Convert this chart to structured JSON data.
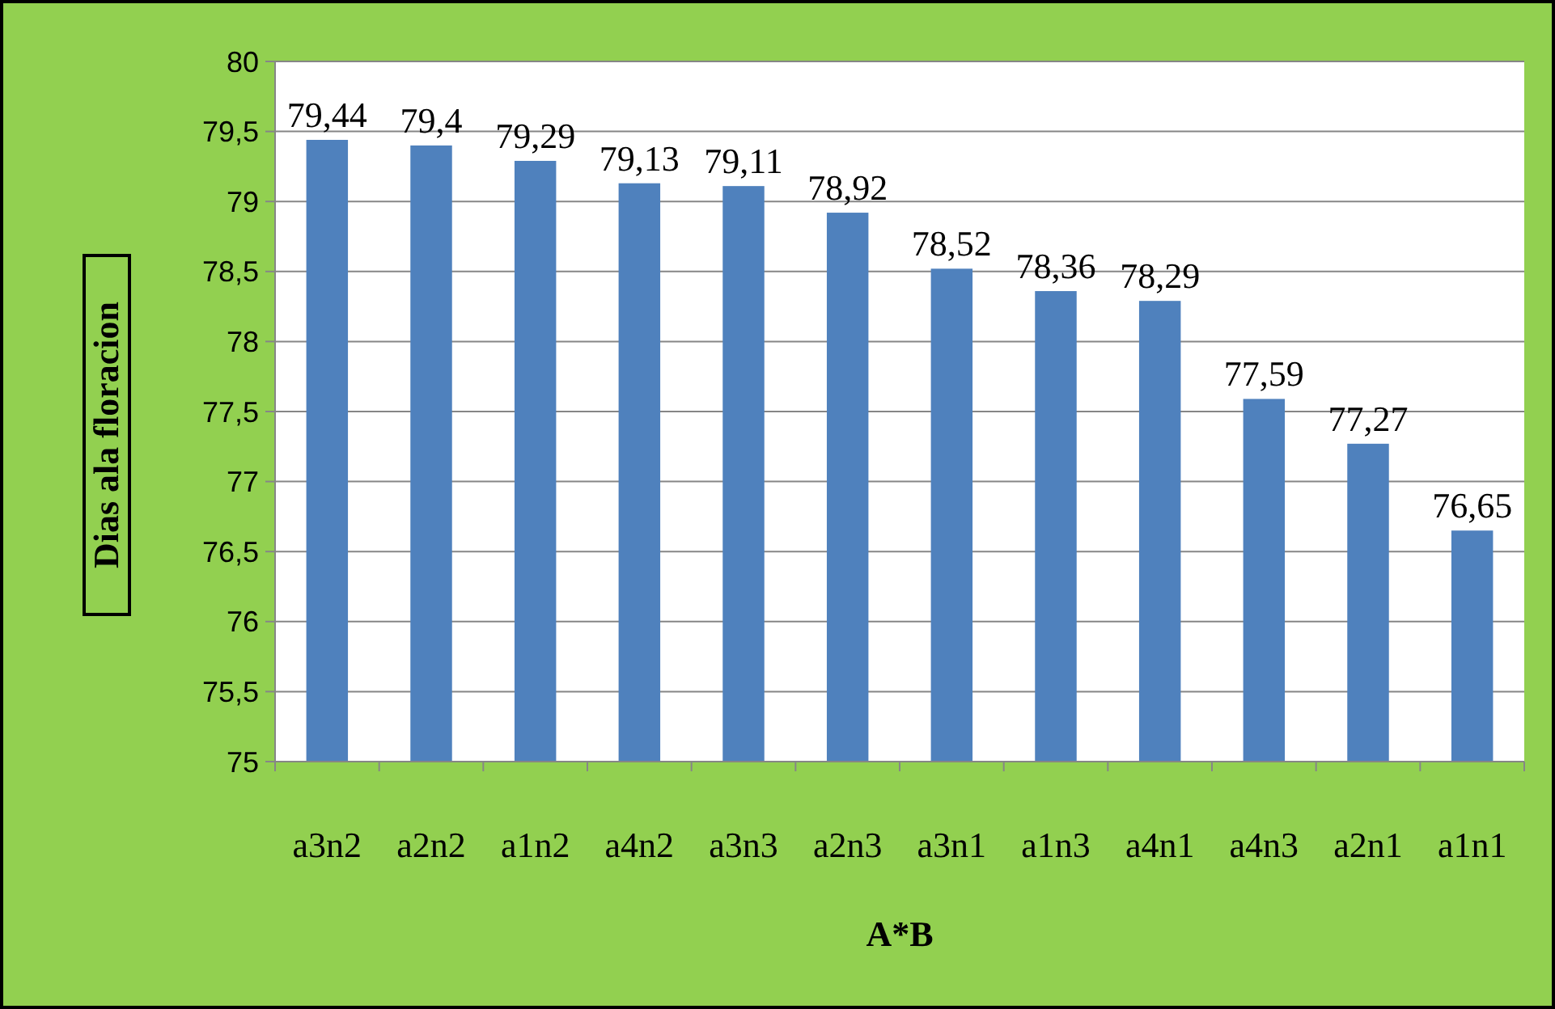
{
  "chart_data": {
    "type": "bar",
    "xlabel": "A*B",
    "ylabel": "Dias ala floracion",
    "categories": [
      "a3n2",
      "a2n2",
      "a1n2",
      "a4n2",
      "a3n3",
      "a2n3",
      "a3n1",
      "a1n3",
      "a4n1",
      "a4n3",
      "a2n1",
      "a1n1"
    ],
    "values": [
      79.44,
      79.4,
      79.29,
      79.13,
      79.11,
      78.92,
      78.52,
      78.36,
      78.29,
      77.59,
      77.27,
      76.65
    ],
    "value_labels": [
      "79,44",
      "79,4",
      "79,29",
      "79,13",
      "79,11",
      "78,92",
      "78,52",
      "78,36",
      "78,29",
      "77,59",
      "77,27",
      "76,65"
    ],
    "color": "#4f81bd",
    "ylim": [
      75,
      80
    ],
    "yticks": [
      75,
      {
        "value": 75.5,
        "label": "75,5"
      },
      76,
      {
        "value": 76.5,
        "label": "76,5"
      },
      77,
      {
        "value": 77.5,
        "label": "77,5"
      },
      78,
      {
        "value": 78.5,
        "label": "78,5"
      },
      79,
      {
        "value": 79.5,
        "label": "79,5"
      },
      80
    ],
    "grid": "y"
  }
}
